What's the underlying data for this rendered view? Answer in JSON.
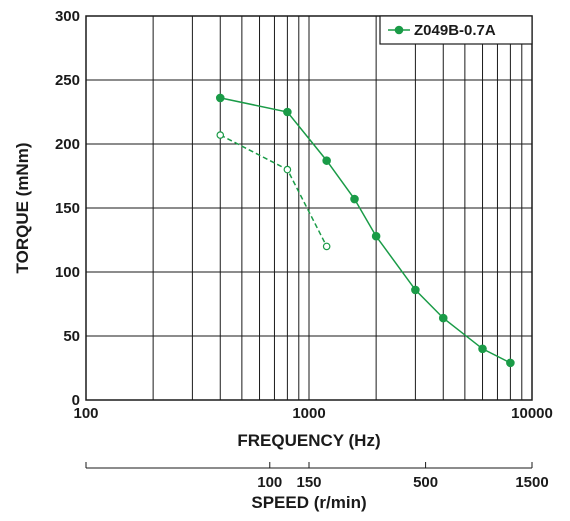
{
  "chart_data": {
    "type": "line",
    "title": "",
    "xlabel": "FREQUENCY (Hz)",
    "ylabel": "TORQUE (mNm)",
    "x_scale": "log",
    "xlim": [
      100,
      10000
    ],
    "ylim": [
      0,
      300
    ],
    "x_ticks": [
      "100",
      "1000",
      "10000"
    ],
    "y_ticks": [
      "0",
      "50",
      "100",
      "150",
      "200",
      "250",
      "300"
    ],
    "grid": true,
    "legend_position": "top-right",
    "secondary_axis": {
      "label": "SPEED (r/min)",
      "ticks": [
        {
          "label": "100",
          "frequency": 667
        },
        {
          "label": "150",
          "frequency": 1000
        },
        {
          "label": "500",
          "frequency": 3333
        },
        {
          "label": "1500",
          "frequency": 10000
        }
      ]
    },
    "series": [
      {
        "name": "Z049B-0.7A",
        "style": "solid",
        "marker": "filled-circle",
        "color": "#1a9b47",
        "x": [
          400,
          800,
          1200,
          1600,
          2000,
          3000,
          4000,
          6000,
          8000
        ],
        "y": [
          236,
          225,
          187,
          157,
          128,
          86,
          64,
          40,
          29
        ]
      },
      {
        "style": "dashed",
        "marker": "open-circle",
        "color": "#1a9b47",
        "x": [
          400,
          800,
          1200
        ],
        "y": [
          207,
          180,
          120
        ]
      }
    ]
  }
}
